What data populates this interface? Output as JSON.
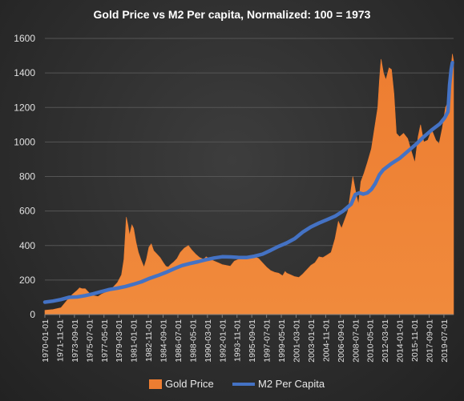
{
  "chart_data": {
    "type": "area",
    "title": "Gold Price vs M2 Per capita, Normalized: 100 = 1973",
    "xlabel": "",
    "ylabel": "",
    "ylim": [
      0,
      1600
    ],
    "y_ticks": [
      0,
      200,
      400,
      600,
      800,
      1000,
      1200,
      1400,
      1600
    ],
    "x_tick_labels": [
      "1970-01-01",
      "1971-11-01",
      "1973-09-01",
      "1975-07-01",
      "1977-05-01",
      "1979-03-01",
      "1981-01-01",
      "1982-11-01",
      "1984-09-01",
      "1986-07-01",
      "1988-05-01",
      "1990-03-01",
      "1992-01-01",
      "1993-11-01",
      "1995-09-01",
      "1997-07-01",
      "1999-05-01",
      "2001-03-01",
      "2003-01-01",
      "2004-11-01",
      "2006-09-01",
      "2008-07-01",
      "2010-05-01",
      "2012-03-01",
      "2014-01-01",
      "2015-11-01",
      "2017-09-01",
      "2019-07-01"
    ],
    "x_range": [
      1970.0,
      2020.7
    ],
    "grid": true,
    "legend_position": "bottom",
    "colors": {
      "gold": "#ed7d31",
      "m2": "#4472c4"
    },
    "series": [
      {
        "name": "Gold Price",
        "kind": "area",
        "points": [
          [
            1970.0,
            25
          ],
          [
            1971.0,
            29
          ],
          [
            1972.0,
            40
          ],
          [
            1972.7,
            80
          ],
          [
            1973.0,
            98
          ],
          [
            1973.5,
            120
          ],
          [
            1974.0,
            140
          ],
          [
            1974.3,
            155
          ],
          [
            1974.6,
            150
          ],
          [
            1975.0,
            150
          ],
          [
            1975.5,
            125
          ],
          [
            1976.0,
            110
          ],
          [
            1976.6,
            105
          ],
          [
            1977.0,
            118
          ],
          [
            1977.5,
            128
          ],
          [
            1978.0,
            140
          ],
          [
            1978.5,
            160
          ],
          [
            1979.0,
            185
          ],
          [
            1979.5,
            230
          ],
          [
            1979.8,
            320
          ],
          [
            1980.0,
            480
          ],
          [
            1980.1,
            565
          ],
          [
            1980.3,
            520
          ],
          [
            1980.5,
            460
          ],
          [
            1980.8,
            520
          ],
          [
            1981.0,
            500
          ],
          [
            1981.3,
            420
          ],
          [
            1981.6,
            360
          ],
          [
            1981.9,
            320
          ],
          [
            1982.3,
            275
          ],
          [
            1982.6,
            320
          ],
          [
            1982.9,
            390
          ],
          [
            1983.2,
            410
          ],
          [
            1983.5,
            370
          ],
          [
            1983.9,
            350
          ],
          [
            1984.3,
            330
          ],
          [
            1984.7,
            300
          ],
          [
            1985.0,
            280
          ],
          [
            1985.3,
            275
          ],
          [
            1985.6,
            290
          ],
          [
            1986.0,
            305
          ],
          [
            1986.4,
            325
          ],
          [
            1986.8,
            360
          ],
          [
            1987.3,
            385
          ],
          [
            1987.8,
            400
          ],
          [
            1988.2,
            375
          ],
          [
            1988.7,
            350
          ],
          [
            1989.2,
            330
          ],
          [
            1989.7,
            320
          ],
          [
            1990.0,
            335
          ],
          [
            1990.5,
            320
          ],
          [
            1991.0,
            310
          ],
          [
            1991.5,
            300
          ],
          [
            1992.0,
            290
          ],
          [
            1992.5,
            285
          ],
          [
            1993.0,
            280
          ],
          [
            1993.5,
            310
          ],
          [
            1994.0,
            320
          ],
          [
            1994.5,
            325
          ],
          [
            1995.0,
            325
          ],
          [
            1995.5,
            325
          ],
          [
            1996.0,
            335
          ],
          [
            1996.5,
            325
          ],
          [
            1997.0,
            300
          ],
          [
            1997.5,
            275
          ],
          [
            1998.0,
            255
          ],
          [
            1998.5,
            245
          ],
          [
            1999.0,
            240
          ],
          [
            1999.5,
            225
          ],
          [
            1999.8,
            250
          ],
          [
            2000.0,
            240
          ],
          [
            2000.5,
            230
          ],
          [
            2001.0,
            220
          ],
          [
            2001.5,
            215
          ],
          [
            2002.0,
            235
          ],
          [
            2002.5,
            260
          ],
          [
            2003.0,
            285
          ],
          [
            2003.5,
            300
          ],
          [
            2004.0,
            335
          ],
          [
            2004.5,
            330
          ],
          [
            2005.0,
            345
          ],
          [
            2005.5,
            360
          ],
          [
            2006.0,
            440
          ],
          [
            2006.4,
            540
          ],
          [
            2006.8,
            500
          ],
          [
            2007.2,
            550
          ],
          [
            2007.6,
            600
          ],
          [
            2008.0,
            730
          ],
          [
            2008.2,
            800
          ],
          [
            2008.6,
            700
          ],
          [
            2008.9,
            640
          ],
          [
            2009.2,
            770
          ],
          [
            2009.6,
            820
          ],
          [
            2010.0,
            880
          ],
          [
            2010.5,
            960
          ],
          [
            2010.9,
            1080
          ],
          [
            2011.3,
            1200
          ],
          [
            2011.5,
            1360
          ],
          [
            2011.7,
            1480
          ],
          [
            2012.0,
            1400
          ],
          [
            2012.3,
            1360
          ],
          [
            2012.7,
            1430
          ],
          [
            2013.0,
            1420
          ],
          [
            2013.3,
            1280
          ],
          [
            2013.6,
            1050
          ],
          [
            2014.0,
            1030
          ],
          [
            2014.5,
            1050
          ],
          [
            2015.0,
            1020
          ],
          [
            2015.5,
            940
          ],
          [
            2015.9,
            880
          ],
          [
            2016.3,
            1030
          ],
          [
            2016.6,
            1100
          ],
          [
            2017.0,
            1000
          ],
          [
            2017.5,
            1010
          ],
          [
            2018.0,
            1070
          ],
          [
            2018.5,
            1010
          ],
          [
            2018.9,
            990
          ],
          [
            2019.3,
            1080
          ],
          [
            2019.7,
            1200
          ],
          [
            2020.0,
            1230
          ],
          [
            2020.3,
            1380
          ],
          [
            2020.55,
            1510
          ],
          [
            2020.7,
            1470
          ]
        ]
      },
      {
        "name": "M2 Per Capita",
        "kind": "line",
        "points": [
          [
            1970.0,
            72
          ],
          [
            1971.0,
            78
          ],
          [
            1972.0,
            87
          ],
          [
            1973.0,
            100
          ],
          [
            1974.0,
            102
          ],
          [
            1975.0,
            110
          ],
          [
            1976.0,
            120
          ],
          [
            1977.0,
            133
          ],
          [
            1978.0,
            145
          ],
          [
            1979.0,
            153
          ],
          [
            1980.0,
            163
          ],
          [
            1981.0,
            176
          ],
          [
            1982.0,
            190
          ],
          [
            1983.0,
            210
          ],
          [
            1984.0,
            226
          ],
          [
            1985.0,
            244
          ],
          [
            1986.0,
            265
          ],
          [
            1987.0,
            284
          ],
          [
            1988.0,
            296
          ],
          [
            1989.0,
            306
          ],
          [
            1990.0,
            318
          ],
          [
            1991.0,
            328
          ],
          [
            1992.0,
            335
          ],
          [
            1993.0,
            334
          ],
          [
            1994.0,
            331
          ],
          [
            1995.0,
            330
          ],
          [
            1996.0,
            338
          ],
          [
            1997.0,
            350
          ],
          [
            1998.0,
            372
          ],
          [
            1999.0,
            395
          ],
          [
            2000.0,
            415
          ],
          [
            2001.0,
            440
          ],
          [
            2002.0,
            478
          ],
          [
            2003.0,
            508
          ],
          [
            2004.0,
            530
          ],
          [
            2005.0,
            550
          ],
          [
            2006.0,
            570
          ],
          [
            2007.0,
            600
          ],
          [
            2008.0,
            640
          ],
          [
            2008.5,
            695
          ],
          [
            2009.0,
            705
          ],
          [
            2009.5,
            698
          ],
          [
            2010.0,
            705
          ],
          [
            2010.5,
            725
          ],
          [
            2011.0,
            760
          ],
          [
            2011.5,
            810
          ],
          [
            2012.0,
            840
          ],
          [
            2013.0,
            875
          ],
          [
            2014.0,
            905
          ],
          [
            2015.0,
            945
          ],
          [
            2016.0,
            985
          ],
          [
            2017.0,
            1030
          ],
          [
            2018.0,
            1070
          ],
          [
            2019.0,
            1105
          ],
          [
            2019.6,
            1140
          ],
          [
            2020.0,
            1175
          ],
          [
            2020.2,
            1330
          ],
          [
            2020.4,
            1420
          ],
          [
            2020.55,
            1460
          ]
        ]
      }
    ]
  }
}
